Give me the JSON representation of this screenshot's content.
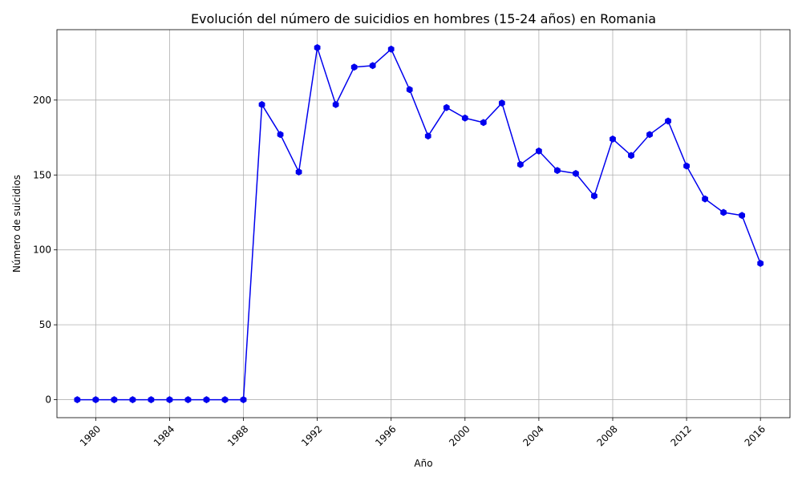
{
  "chart_data": {
    "type": "line",
    "title": "Evolución del número de suicidios en hombres (15-24 años) en Romania",
    "xlabel": "Año",
    "ylabel": "Número de suicidios",
    "xlim": [
      1977.9,
      2017.6
    ],
    "ylim": [
      -12,
      247
    ],
    "grid": true,
    "x_ticks": [
      1980,
      1984,
      1988,
      1992,
      1996,
      2000,
      2004,
      2008,
      2012,
      2016
    ],
    "y_ticks": [
      0,
      50,
      100,
      150,
      200
    ],
    "series": [
      {
        "color": "#0000ee",
        "marker": "hexagon",
        "x": [
          1979,
          1980,
          1981,
          1982,
          1983,
          1984,
          1985,
          1986,
          1987,
          1988,
          1989,
          1990,
          1991,
          1992,
          1993,
          1994,
          1995,
          1996,
          1997,
          1998,
          1999,
          2000,
          2001,
          2002,
          2003,
          2004,
          2005,
          2006,
          2007,
          2008,
          2009,
          2010,
          2011,
          2012,
          2013,
          2014,
          2015,
          2016
        ],
        "values": [
          0,
          0,
          0,
          0,
          0,
          0,
          0,
          0,
          0,
          0,
          197,
          177,
          152,
          235,
          197,
          222,
          223,
          234,
          207,
          176,
          195,
          188,
          185,
          198,
          157,
          166,
          153,
          151,
          136,
          174,
          163,
          177,
          186,
          156,
          134,
          125,
          123,
          91
        ]
      }
    ]
  }
}
